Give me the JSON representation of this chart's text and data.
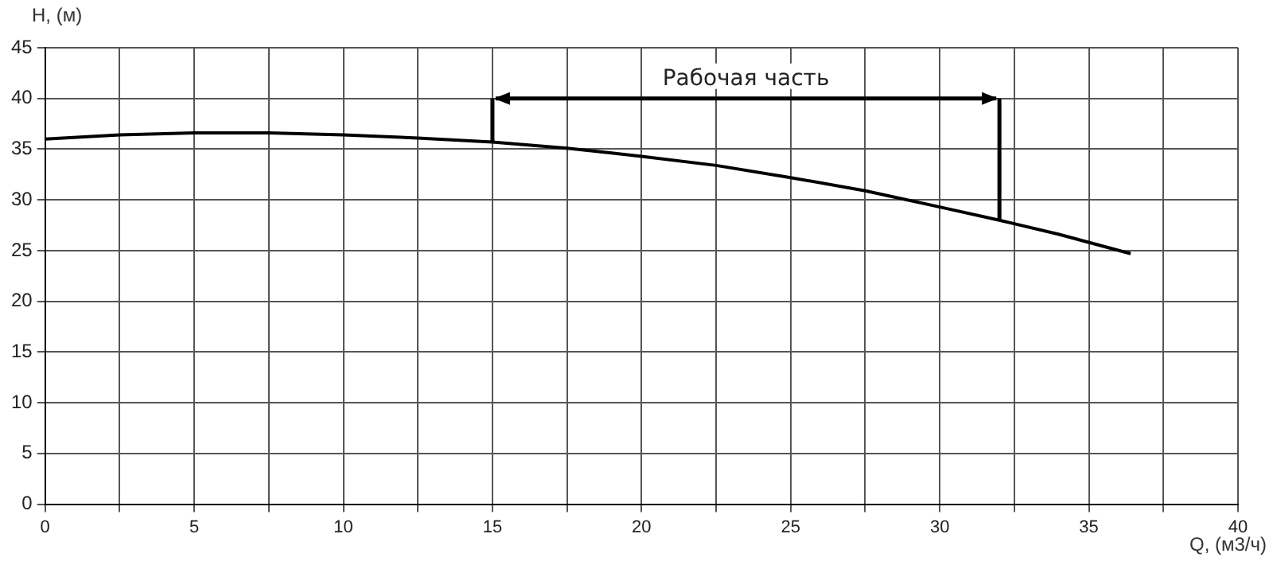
{
  "chart_data": {
    "type": "line",
    "xlabel": "Q, (м3/ч)",
    "ylabel": "H, (м)",
    "x": [
      0,
      2.5,
      5,
      7.5,
      10,
      12.5,
      15,
      17.5,
      20,
      22.5,
      25,
      27.5,
      30,
      32,
      34,
      36.4
    ],
    "series": [
      {
        "color": "#000000",
        "values": [
          36,
          36.4,
          36.6,
          36.6,
          36.4,
          36.1,
          35.7,
          35.1,
          34.3,
          33.4,
          32.2,
          30.9,
          29.3,
          28,
          26.6,
          24.7
        ]
      }
    ],
    "xlim": [
      0,
      40
    ],
    "ylim": [
      0,
      45
    ],
    "xticks": [
      0,
      {
        "value": 2.5,
        "label": null
      },
      5,
      {
        "value": 7.5,
        "label": null
      },
      10,
      {
        "value": 12.5,
        "label": null
      },
      15,
      {
        "value": 17.5,
        "label": null
      },
      20,
      {
        "value": 22.5,
        "label": null
      },
      25,
      {
        "value": 27.5,
        "label": null
      },
      30,
      {
        "value": 32.5,
        "label": null
      },
      35,
      {
        "value": 37.5,
        "label": null
      },
      40
    ],
    "yticks": [
      0,
      5,
      10,
      15,
      20,
      25,
      30,
      35,
      40,
      45
    ],
    "ref_lines": [
      {
        "axis": "x",
        "value": 15,
        "color": "#000000"
      },
      {
        "axis": "x",
        "value": 32,
        "color": "#000000"
      }
    ],
    "annotations": [
      "Рабочая часть"
    ],
    "grid": true,
    "legend": false,
    "marker": "none",
    "line_style": "solid"
  }
}
